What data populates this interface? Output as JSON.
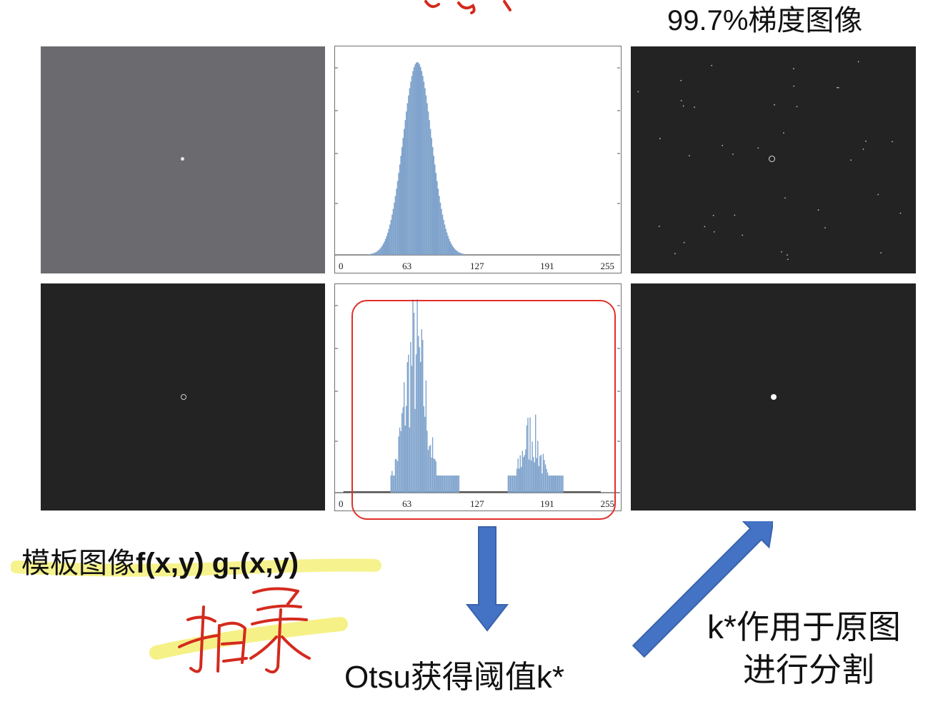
{
  "title_gradient": "99.7%梯度图像",
  "label_template_prefix": "模板图像",
  "label_template_f": "f(x,y)",
  "label_template_g": "g",
  "label_template_g_sub": "T",
  "label_template_g_args": "(x,y)",
  "otsu_label": "Otsu获得阈值k*",
  "apply_line1": "k*作用于原图",
  "apply_line2": "进行分割",
  "handwritten_note": "扫录",
  "colors": {
    "bar": "#7fa3cc",
    "arrow": "#4472c4",
    "red_box": "#e0302a",
    "highlight": "#f5f07a",
    "gray_image": "#6b6b6f",
    "dark_image": "#232323"
  },
  "chart_data": [
    {
      "type": "bar",
      "name": "original histogram",
      "xlim": [
        0,
        255
      ],
      "xticks": [
        "0",
        "63",
        "127",
        "191",
        "255"
      ],
      "distribution": "gaussian",
      "peak_at": 72,
      "spread_sd": 13
    },
    {
      "type": "bar",
      "name": "masked gradient histogram",
      "xlim": [
        0,
        255
      ],
      "xticks": [
        "0",
        "63",
        "127",
        "191",
        "255"
      ],
      "clusters": [
        {
          "range": [
            48,
            110
          ],
          "peak_at": 70
        },
        {
          "range": [
            155,
            205
          ],
          "peak_at": 175
        }
      ]
    }
  ]
}
